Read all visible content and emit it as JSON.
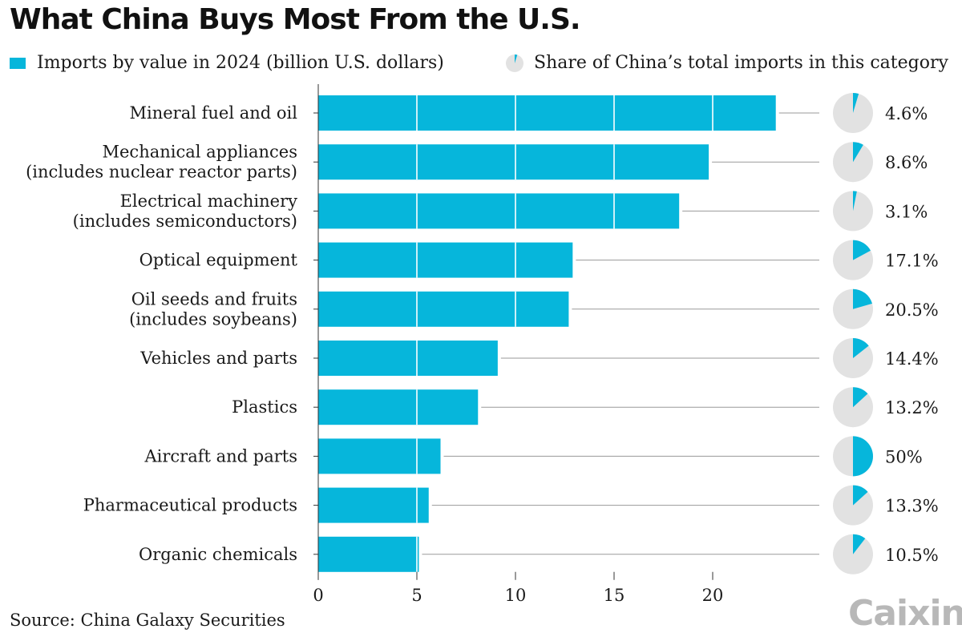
{
  "title": "What China Buys Most From the U.S.",
  "legend": {
    "bars_label": "Imports by value in 2024 (billion U.S. dollars)",
    "pies_label": "Share of China’s total imports in this category"
  },
  "source": "Source: China Galaxy Securities",
  "logo": "Caixin",
  "colors": {
    "bar": "#06b6db",
    "pie_bg": "#e2e2e2",
    "pie_fill": "#06b6db",
    "leader": "#9a9a9a"
  },
  "chart_data": {
    "type": "bar",
    "orientation": "horizontal",
    "categories": [
      [
        "Mineral fuel and oil"
      ],
      [
        "Mechanical appliances",
        "(includes nuclear reactor parts)"
      ],
      [
        "Electrical machinery",
        "(includes semiconductors)"
      ],
      [
        "Optical equipment"
      ],
      [
        "Oil seeds and fruits",
        "(includes soybeans)"
      ],
      [
        "Vehicles and parts"
      ],
      [
        "Plastics"
      ],
      [
        "Aircraft and parts"
      ],
      [
        "Pharmaceutical products"
      ],
      [
        "Organic chemicals"
      ]
    ],
    "values": [
      23.2,
      19.8,
      18.3,
      12.9,
      12.7,
      9.1,
      8.1,
      6.2,
      5.6,
      5.1
    ],
    "shares": [
      4.6,
      8.6,
      3.1,
      17.1,
      20.5,
      14.4,
      13.2,
      50,
      13.3,
      10.5
    ],
    "share_labels": [
      "4.6%",
      "8.6%",
      "3.1%",
      "17.1%",
      "20.5%",
      "14.4%",
      "13.2%",
      "50%",
      "13.3%",
      "10.5%"
    ],
    "xticks": [
      0,
      5,
      10,
      15,
      20
    ],
    "xlim": [
      0,
      25
    ]
  }
}
